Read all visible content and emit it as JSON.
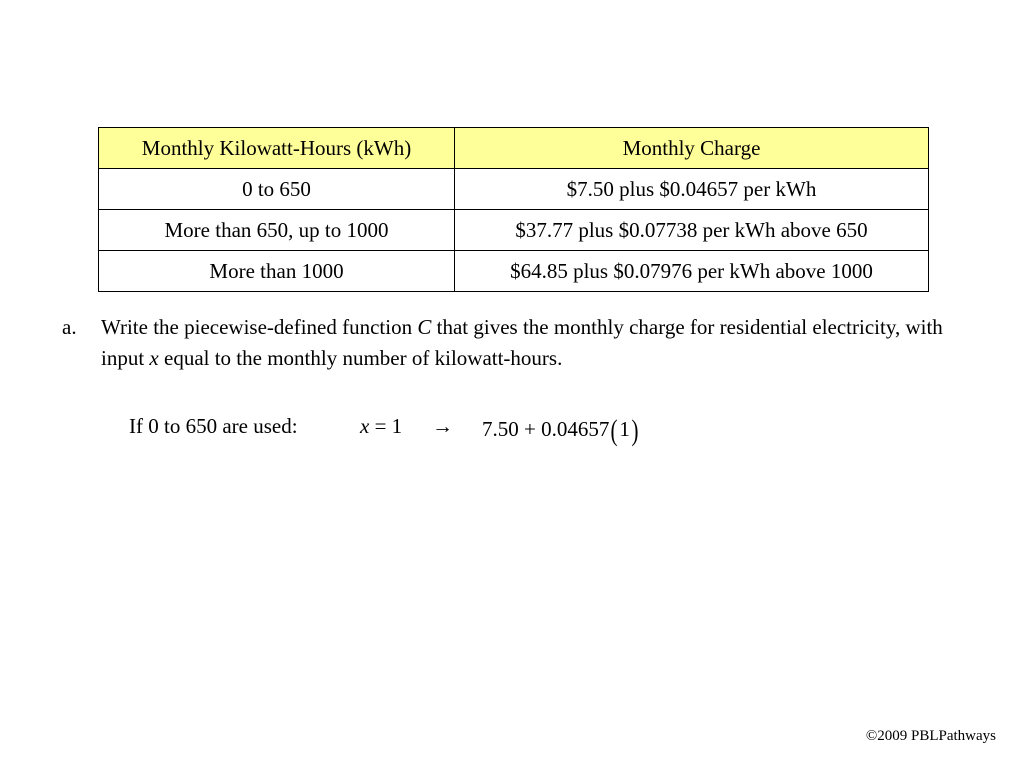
{
  "table": {
    "headers": [
      "Monthly Kilowatt-Hours (kWh)",
      "Monthly Charge"
    ],
    "rows": [
      [
        "0 to 650",
        "$7.50 plus $0.04657 per kWh"
      ],
      [
        "More than 650, up to 1000",
        "$37.77 plus $0.07738 per kWh above 650"
      ],
      [
        "More than 1000",
        "$64.85 plus $0.07976 per kWh above 1000"
      ]
    ]
  },
  "question": {
    "letter": "a.",
    "text_part1": "Write the piecewise-defined function ",
    "var_c": "C",
    "text_part2": " that gives the monthly charge for residential electricity, with input ",
    "var_x": "x",
    "text_part3": " equal to the monthly number of kilowatt-hours."
  },
  "work": {
    "label": "If 0 to 650 are used:",
    "eq_var": "x",
    "eq_rest": " = 1",
    "arrow": "→",
    "expr": "7.50 + 0.04657",
    "paren_open": "(",
    "paren_value": "1",
    "paren_close": ")"
  },
  "footer": {
    "copyright": "©2009 PBLPathways"
  }
}
